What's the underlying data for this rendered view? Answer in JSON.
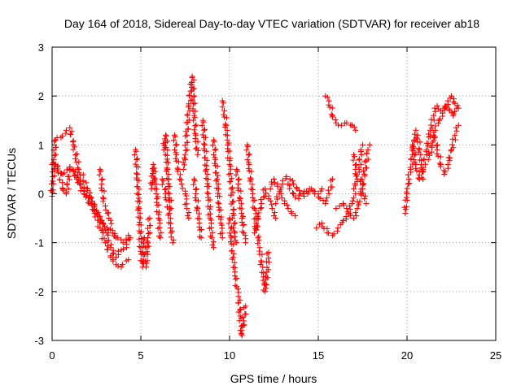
{
  "chart_data": {
    "type": "scatter",
    "title": "Day 164 of 2018, Sidereal Day-to-day VTEC variation (SDTVAR) for receiver ab18",
    "xlabel": "GPS time / hours",
    "ylabel": "SDTVAR / TECUs",
    "xlim": [
      0,
      25
    ],
    "ylim": [
      -3,
      3
    ],
    "xticks": [
      0,
      5,
      10,
      15,
      20,
      25
    ],
    "yticks": [
      -3,
      -2,
      -1,
      0,
      1,
      2,
      3
    ],
    "xtick_labels": [
      "0",
      "5",
      "10",
      "15",
      "20",
      "25"
    ],
    "ytick_labels": [
      "-3",
      "-2",
      "-1",
      "0",
      "1",
      "2",
      "3"
    ],
    "grid": true,
    "marker": "plus",
    "series": [
      {
        "name": "SDTVAR",
        "color": "#ff0000",
        "segments": [
          [
            [
              0.0,
              -0.05
            ],
            [
              0.1,
              0.6
            ],
            [
              0.2,
              1.1
            ],
            [
              0.5,
              1.15
            ],
            [
              0.8,
              1.3
            ],
            [
              1.0,
              1.35
            ],
            [
              1.2,
              1.0
            ],
            [
              1.5,
              0.5
            ],
            [
              2.0,
              0.1
            ],
            [
              2.5,
              -0.35
            ],
            [
              3.0,
              -0.75
            ],
            [
              3.3,
              -1.1
            ],
            [
              3.6,
              -1.3
            ],
            [
              3.9,
              -1.15
            ],
            [
              4.2,
              -1.1
            ],
            [
              4.4,
              -0.9
            ]
          ],
          [
            [
              0.0,
              0.6
            ],
            [
              0.3,
              0.55
            ],
            [
              0.6,
              0.1
            ],
            [
              0.8,
              0.0
            ],
            [
              1.0,
              0.5
            ],
            [
              1.3,
              0.45
            ],
            [
              1.5,
              0.3
            ],
            [
              1.8,
              0.05
            ],
            [
              2.1,
              -0.15
            ],
            [
              2.4,
              -0.4
            ],
            [
              2.7,
              -0.7
            ],
            [
              3.0,
              -1.0
            ],
            [
              3.3,
              -1.3
            ],
            [
              3.6,
              -1.45
            ],
            [
              3.9,
              -1.5
            ],
            [
              4.3,
              -1.35
            ]
          ],
          [
            [
              0.2,
              0.6
            ],
            [
              0.6,
              0.4
            ],
            [
              1.0,
              0.55
            ],
            [
              1.4,
              0.3
            ],
            [
              1.8,
              0.0
            ],
            [
              2.2,
              -0.2
            ],
            [
              2.5,
              -0.35
            ],
            [
              2.8,
              -0.55
            ],
            [
              3.1,
              -0.7
            ],
            [
              3.4,
              -0.8
            ],
            [
              3.7,
              -0.9
            ],
            [
              4.0,
              -1.0
            ],
            [
              4.3,
              -0.85
            ]
          ],
          [
            [
              2.7,
              0.5
            ],
            [
              2.8,
              0.2
            ],
            [
              2.9,
              -0.1
            ],
            [
              3.0,
              -0.25
            ],
            [
              3.2,
              -0.5
            ],
            [
              3.4,
              -0.75
            ],
            [
              3.6,
              -0.9
            ]
          ],
          [
            [
              4.7,
              0.9
            ],
            [
              4.8,
              0.4
            ],
            [
              4.9,
              -0.3
            ],
            [
              5.0,
              -1.1
            ],
            [
              5.1,
              -1.5
            ],
            [
              5.2,
              -0.9
            ]
          ],
          [
            [
              5.3,
              -1.5
            ],
            [
              5.4,
              -1.0
            ],
            [
              5.5,
              -0.5
            ]
          ],
          [
            [
              5.6,
              0.1
            ],
            [
              5.7,
              0.6
            ],
            [
              5.8,
              0.3
            ],
            [
              5.9,
              -0.1
            ],
            [
              6.0,
              -0.5
            ],
            [
              6.1,
              -0.9
            ]
          ],
          [
            [
              6.2,
              0.3
            ],
            [
              6.4,
              0.0
            ],
            [
              6.6,
              -0.4
            ],
            [
              6.7,
              -0.8
            ],
            [
              6.8,
              -1.0
            ]
          ],
          [
            [
              6.3,
              0.9
            ],
            [
              6.4,
              1.2
            ],
            [
              6.5,
              0.5
            ],
            [
              6.6,
              0.0
            ],
            [
              6.7,
              -0.3
            ]
          ],
          [
            [
              6.9,
              1.2
            ],
            [
              7.0,
              0.8
            ],
            [
              7.1,
              0.5
            ],
            [
              7.3,
              0.2
            ],
            [
              7.5,
              0.0
            ],
            [
              7.6,
              -0.3
            ],
            [
              7.7,
              -0.5
            ]
          ],
          [
            [
              7.4,
              0.5
            ],
            [
              7.5,
              0.7
            ],
            [
              7.6,
              1.2
            ],
            [
              7.7,
              1.8
            ],
            [
              7.8,
              2.1
            ],
            [
              7.9,
              2.4
            ],
            [
              8.0,
              1.6
            ],
            [
              8.1,
              1.2
            ],
            [
              8.2,
              0.8
            ]
          ],
          [
            [
              8.0,
              0.3
            ],
            [
              8.1,
              0.0
            ],
            [
              8.2,
              -0.3
            ],
            [
              8.3,
              -0.6
            ],
            [
              8.4,
              -0.9
            ]
          ],
          [
            [
              8.5,
              1.5
            ],
            [
              8.6,
              1.0
            ],
            [
              8.7,
              0.5
            ],
            [
              8.8,
              0.0
            ],
            [
              8.9,
              -0.5
            ],
            [
              9.0,
              -0.9
            ],
            [
              9.1,
              -1.1
            ]
          ],
          [
            [
              9.1,
              1.1
            ],
            [
              9.2,
              0.7
            ],
            [
              9.3,
              0.3
            ],
            [
              9.4,
              -0.2
            ],
            [
              9.5,
              -0.6
            ],
            [
              9.6,
              -0.9
            ]
          ],
          [
            [
              9.6,
              1.9
            ],
            [
              9.7,
              1.7
            ],
            [
              9.8,
              1.4
            ],
            [
              9.9,
              1.0
            ],
            [
              10.0,
              0.6
            ],
            [
              10.1,
              0.1
            ],
            [
              10.2,
              -0.4
            ],
            [
              10.3,
              -0.8
            ],
            [
              10.4,
              -1.0
            ]
          ],
          [
            [
              10.0,
              -0.5
            ],
            [
              10.1,
              -0.9
            ],
            [
              10.2,
              -1.3
            ],
            [
              10.3,
              -1.6
            ],
            [
              10.4,
              -1.9
            ],
            [
              10.5,
              -2.1
            ],
            [
              10.6,
              -2.5
            ],
            [
              10.7,
              -2.9
            ],
            [
              10.8,
              -2.6
            ],
            [
              10.9,
              -2.3
            ]
          ],
          [
            [
              10.4,
              0.5
            ],
            [
              10.5,
              0.2
            ],
            [
              10.6,
              -0.1
            ],
            [
              10.7,
              -0.5
            ],
            [
              10.8,
              -0.8
            ],
            [
              10.9,
              -1.0
            ]
          ],
          [
            [
              11.0,
              1.0
            ],
            [
              11.1,
              0.6
            ],
            [
              11.2,
              0.3
            ],
            [
              11.3,
              0.0
            ],
            [
              11.4,
              -0.3
            ],
            [
              11.5,
              -0.6
            ],
            [
              11.6,
              -0.9
            ],
            [
              11.7,
              -1.1
            ],
            [
              11.8,
              -1.4
            ],
            [
              11.9,
              -1.7
            ],
            [
              12.0,
              -2.0
            ],
            [
              12.1,
              -1.6
            ],
            [
              12.2,
              -1.2
            ]
          ],
          [
            [
              11.4,
              -0.8
            ],
            [
              11.6,
              -0.5
            ],
            [
              11.8,
              -0.2
            ],
            [
              12.0,
              0.1
            ],
            [
              12.2,
              -0.1
            ],
            [
              12.4,
              -0.3
            ],
            [
              12.6,
              -0.5
            ]
          ],
          [
            [
              12.3,
              0.1
            ],
            [
              12.5,
              0.3
            ],
            [
              12.7,
              0.2
            ],
            [
              12.9,
              0.0
            ],
            [
              13.1,
              -0.2
            ],
            [
              13.3,
              -0.3
            ],
            [
              13.5,
              -0.4
            ],
            [
              13.7,
              -0.45
            ]
          ],
          [
            [
              12.6,
              -0.2
            ],
            [
              12.8,
              0.0
            ],
            [
              13.0,
              0.2
            ],
            [
              13.2,
              0.35
            ],
            [
              13.4,
              0.3
            ],
            [
              13.6,
              0.2
            ],
            [
              13.8,
              0.1
            ],
            [
              14.0,
              0.0
            ],
            [
              14.2,
              -0.05
            ],
            [
              14.4,
              0.0
            ],
            [
              14.6,
              0.1
            ],
            [
              14.8,
              0.05
            ],
            [
              15.0,
              0.0
            ],
            [
              15.2,
              0.1
            ]
          ],
          [
            [
              13.3,
              0.2
            ],
            [
              13.6,
              0.0
            ],
            [
              13.9,
              -0.1
            ],
            [
              14.2,
              0.05
            ],
            [
              14.5,
              0.1
            ],
            [
              14.8,
              0.0
            ],
            [
              15.1,
              -0.1
            ],
            [
              15.4,
              -0.2
            ],
            [
              15.6,
              0.0
            ],
            [
              15.8,
              0.3
            ]
          ],
          [
            [
              14.9,
              -0.7
            ],
            [
              15.2,
              -0.6
            ],
            [
              15.5,
              -0.8
            ],
            [
              15.8,
              -0.85
            ],
            [
              16.1,
              -0.7
            ],
            [
              16.4,
              -0.55
            ],
            [
              16.7,
              -0.4
            ],
            [
              16.9,
              -0.2
            ],
            [
              17.1,
              0.0
            ]
          ],
          [
            [
              15.4,
              2.0
            ],
            [
              15.6,
              1.9
            ],
            [
              15.8,
              1.6
            ],
            [
              16.0,
              1.45
            ],
            [
              16.3,
              1.4
            ],
            [
              16.6,
              1.45
            ],
            [
              16.9,
              1.4
            ],
            [
              17.1,
              1.3
            ]
          ],
          [
            [
              16.0,
              -0.3
            ],
            [
              16.2,
              -0.25
            ],
            [
              16.4,
              -0.2
            ],
            [
              16.6,
              -0.3
            ],
            [
              16.8,
              -0.45
            ],
            [
              17.0,
              -0.5
            ],
            [
              17.2,
              -0.3
            ],
            [
              17.4,
              0.0
            ],
            [
              17.6,
              0.4
            ],
            [
              17.8,
              0.9
            ],
            [
              17.9,
              1.0
            ]
          ],
          [
            [
              17.0,
              0.8
            ],
            [
              17.1,
              0.5
            ],
            [
              17.2,
              0.3
            ],
            [
              17.3,
              0.5
            ],
            [
              17.4,
              0.9
            ],
            [
              17.5,
              1.0
            ]
          ],
          [
            [
              17.0,
              0.1
            ],
            [
              17.2,
              0.25
            ],
            [
              17.4,
              0.3
            ],
            [
              17.5,
              0.1
            ],
            [
              17.6,
              -0.1
            ],
            [
              17.7,
              -0.2
            ]
          ],
          [
            [
              19.9,
              -0.4
            ],
            [
              20.0,
              0.0
            ],
            [
              20.1,
              0.3
            ],
            [
              20.2,
              0.5
            ],
            [
              20.3,
              0.8
            ],
            [
              20.4,
              1.1
            ],
            [
              20.5,
              1.3
            ],
            [
              20.6,
              1.2
            ],
            [
              20.7,
              0.9
            ],
            [
              20.8,
              0.6
            ],
            [
              20.9,
              0.3
            ]
          ],
          [
            [
              20.3,
              1.0
            ],
            [
              20.5,
              0.6
            ],
            [
              20.7,
              0.3
            ],
            [
              20.9,
              0.5
            ],
            [
              21.1,
              0.9
            ],
            [
              21.3,
              1.3
            ],
            [
              21.5,
              1.6
            ],
            [
              21.7,
              1.8
            ],
            [
              21.9,
              1.7
            ],
            [
              22.1,
              1.75
            ],
            [
              22.3,
              1.9
            ],
            [
              22.5,
              2.0
            ],
            [
              22.7,
              1.85
            ],
            [
              22.9,
              1.75
            ]
          ],
          [
            [
              21.5,
              1.2
            ],
            [
              21.7,
              0.9
            ],
            [
              21.9,
              0.6
            ],
            [
              22.1,
              0.4
            ],
            [
              22.3,
              0.6
            ],
            [
              22.5,
              0.9
            ],
            [
              22.7,
              1.2
            ],
            [
              22.9,
              1.4
            ]
          ],
          [
            [
              21.2,
              0.7
            ],
            [
              21.4,
              0.95
            ],
            [
              21.6,
              1.3
            ],
            [
              21.8,
              1.5
            ],
            [
              22.0,
              1.65
            ],
            [
              22.2,
              1.8
            ],
            [
              22.4,
              1.7
            ],
            [
              22.6,
              1.6
            ],
            [
              22.8,
              1.75
            ]
          ]
        ]
      }
    ]
  }
}
